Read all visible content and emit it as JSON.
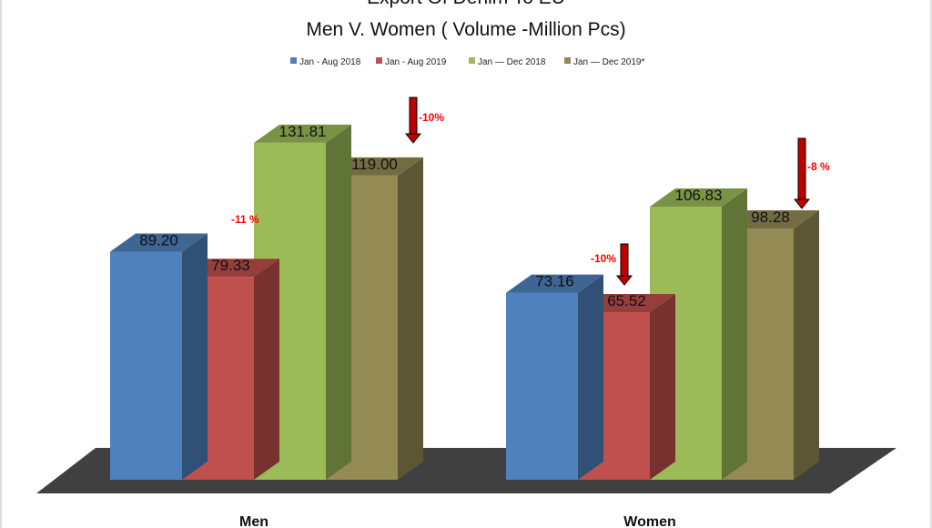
{
  "chart_data": {
    "type": "bar",
    "title": "Export Of Denim To EU",
    "subtitle": "Men V. Women ( Volume -Million Pcs)",
    "categories": [
      "Men",
      "Women"
    ],
    "series": [
      {
        "name": "Jan - Aug 2018",
        "values": [
          89.2,
          73.16
        ],
        "labels": [
          "89.20",
          "73.16"
        ],
        "color": "#4f81bd"
      },
      {
        "name": "Jan - Aug 2019",
        "values": [
          79.33,
          65.52
        ],
        "labels": [
          "79.33",
          "65.52"
        ],
        "color": "#c0504d"
      },
      {
        "name": "Jan — Dec 2018",
        "values": [
          131.81,
          106.83
        ],
        "labels": [
          "131.81",
          "106.83"
        ],
        "color": "#9bbb59"
      },
      {
        "name": "Jan — Dec 2019*",
        "values": [
          119.0,
          98.28
        ],
        "labels": [
          "119.00",
          "98.28"
        ],
        "color": "#948a54"
      }
    ],
    "ylim": [
      0,
      150
    ],
    "legend": "top",
    "grid": false,
    "annotations": [
      {
        "text": "-11 %",
        "category": "Men",
        "compare": "Jan - Aug 2019 vs Jan - Aug 2018"
      },
      {
        "text": "-10%",
        "category": "Men",
        "compare": "Jan — Dec 2019* vs Jan — Dec 2018"
      },
      {
        "text": "-10%",
        "category": "Women",
        "compare": "Jan - Aug 2019 vs Jan - Aug 2018"
      },
      {
        "text": "-8 %",
        "category": "Women",
        "compare": "Jan — Dec 2019* vs Jan — Dec 2018"
      }
    ]
  },
  "colors": {
    "floor": "#404040",
    "arrow": "#c00000",
    "annotation_text": "#ff0000"
  }
}
